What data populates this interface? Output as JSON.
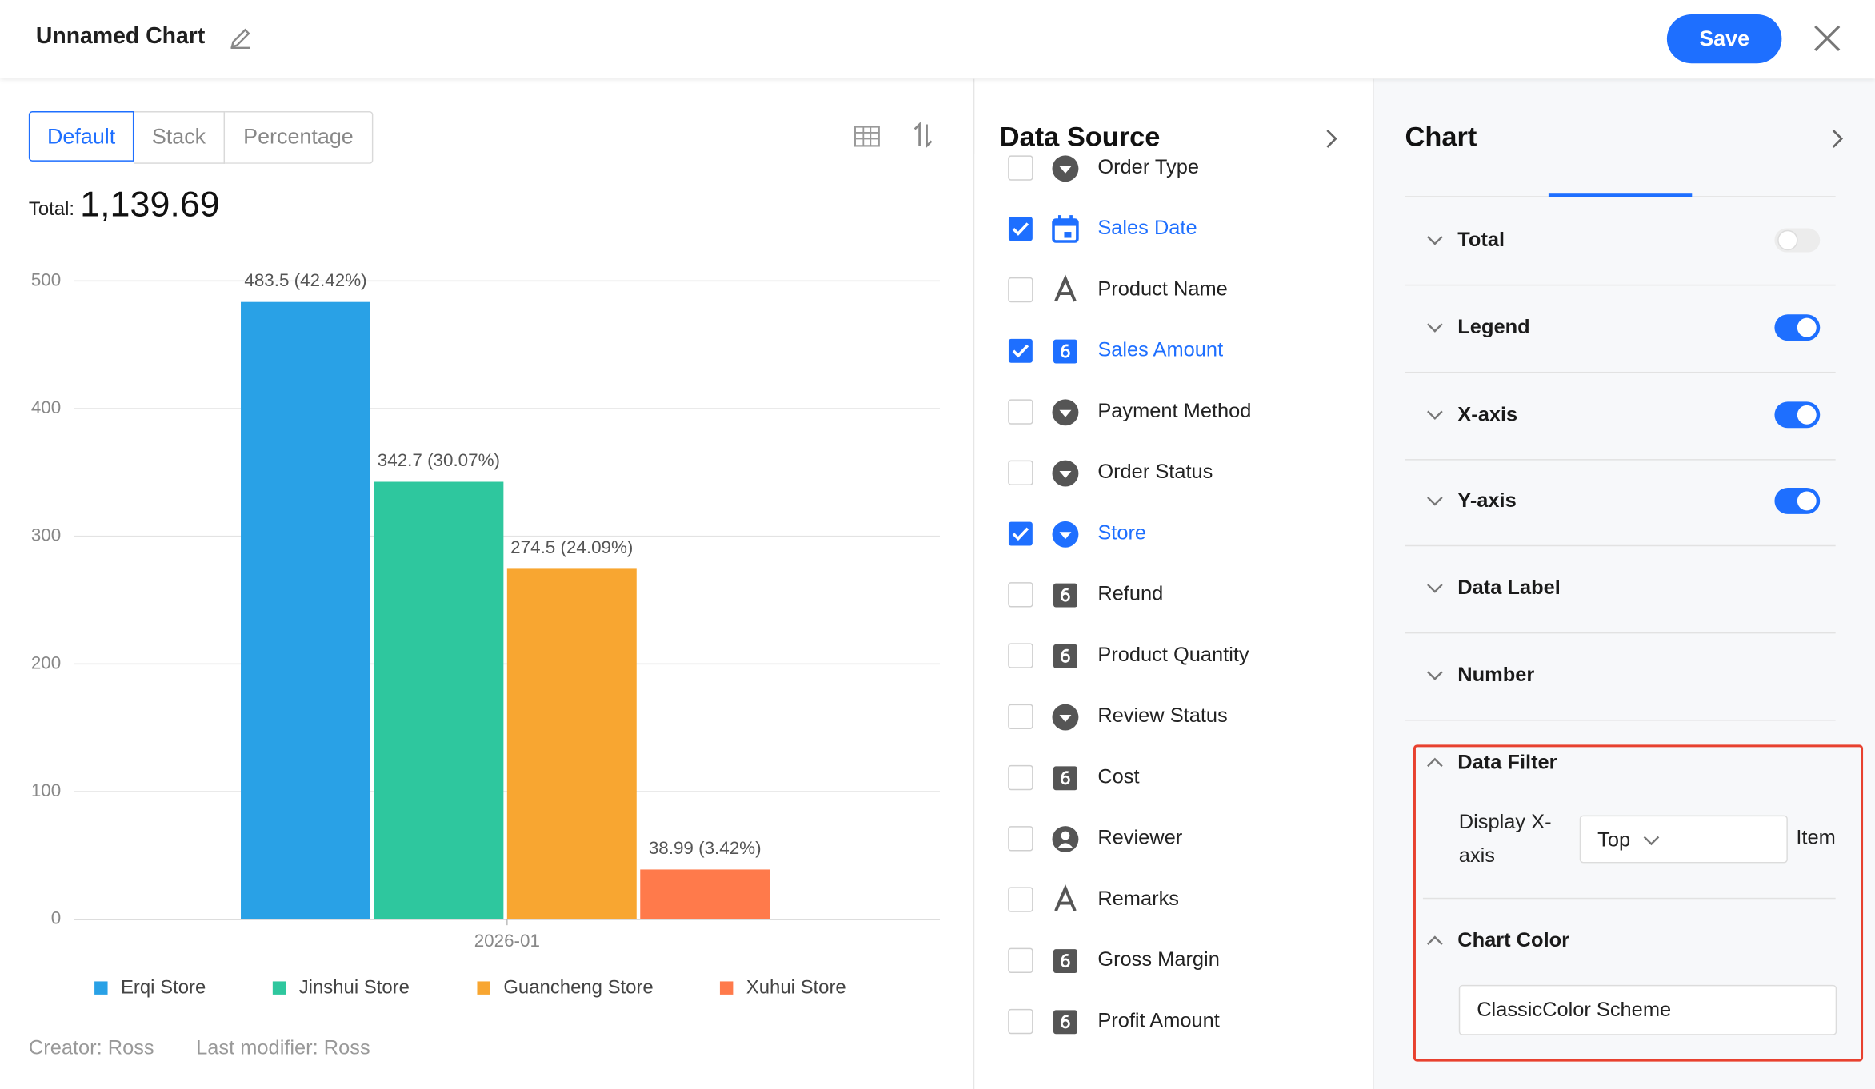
{
  "header": {
    "title": "Unnamed Chart",
    "save": "Save"
  },
  "view_tabs": {
    "items": [
      "Default",
      "Stack",
      "Percentage"
    ],
    "active": 0
  },
  "total": {
    "label": "Total:",
    "value": "1,139.69"
  },
  "chart_data": {
    "type": "bar",
    "categories": [
      "2026-01"
    ],
    "series": [
      {
        "name": "Erqi Store",
        "color": "#29a1e6",
        "values": [
          483.5
        ],
        "value_labels": [
          "483.5 (42.42%)"
        ]
      },
      {
        "name": "Jinshui Store",
        "color": "#2ec79e",
        "values": [
          342.7
        ],
        "value_labels": [
          "342.7 (30.07%)"
        ]
      },
      {
        "name": "Guancheng Store",
        "color": "#f8a631",
        "values": [
          274.5
        ],
        "value_labels": [
          "274.5 (24.09%)"
        ]
      },
      {
        "name": "Xuhui Store",
        "color": "#ff7a4b",
        "values": [
          38.99
        ],
        "value_labels": [
          "38.99 (3.42%)"
        ]
      }
    ],
    "ylim": [
      0,
      500
    ],
    "yticks": [
      0,
      100,
      200,
      300,
      400,
      500
    ],
    "grid": true,
    "legend": "bottom"
  },
  "footer": {
    "creator": "Creator: Ross",
    "modifier": "Last modifier: Ross"
  },
  "data_source": {
    "title": "Data Source",
    "fields": [
      {
        "label": "Order Type",
        "icon": "select",
        "checked": false
      },
      {
        "label": "Sales Date",
        "icon": "date",
        "checked": true
      },
      {
        "label": "Product Name",
        "icon": "text",
        "checked": false
      },
      {
        "label": "Sales Amount",
        "icon": "number",
        "checked": true
      },
      {
        "label": "Payment Method",
        "icon": "select",
        "checked": false
      },
      {
        "label": "Order Status",
        "icon": "select",
        "checked": false
      },
      {
        "label": "Store",
        "icon": "select",
        "checked": true
      },
      {
        "label": "Refund",
        "icon": "number",
        "checked": false
      },
      {
        "label": "Product Quantity",
        "icon": "number",
        "checked": false
      },
      {
        "label": "Review Status",
        "icon": "select",
        "checked": false
      },
      {
        "label": "Cost",
        "icon": "number",
        "checked": false
      },
      {
        "label": "Reviewer",
        "icon": "person",
        "checked": false
      },
      {
        "label": "Remarks",
        "icon": "text",
        "checked": false
      },
      {
        "label": "Gross Margin",
        "icon": "number",
        "checked": false
      },
      {
        "label": "Profit Amount",
        "icon": "number",
        "checked": false
      }
    ]
  },
  "settings": {
    "title": "Chart",
    "sections": [
      {
        "label": "Total",
        "toggle": false
      },
      {
        "label": "Legend",
        "toggle": true
      },
      {
        "label": "X-axis",
        "toggle": true
      },
      {
        "label": "Y-axis",
        "toggle": true
      },
      {
        "label": "Data Label"
      },
      {
        "label": "Number"
      }
    ],
    "data_filter": {
      "title": "Data Filter",
      "label": "Display X-axis",
      "select": "Top",
      "suffix": "Item"
    },
    "chart_color": {
      "title": "Chart Color",
      "value": "ClassicColor Scheme"
    }
  }
}
